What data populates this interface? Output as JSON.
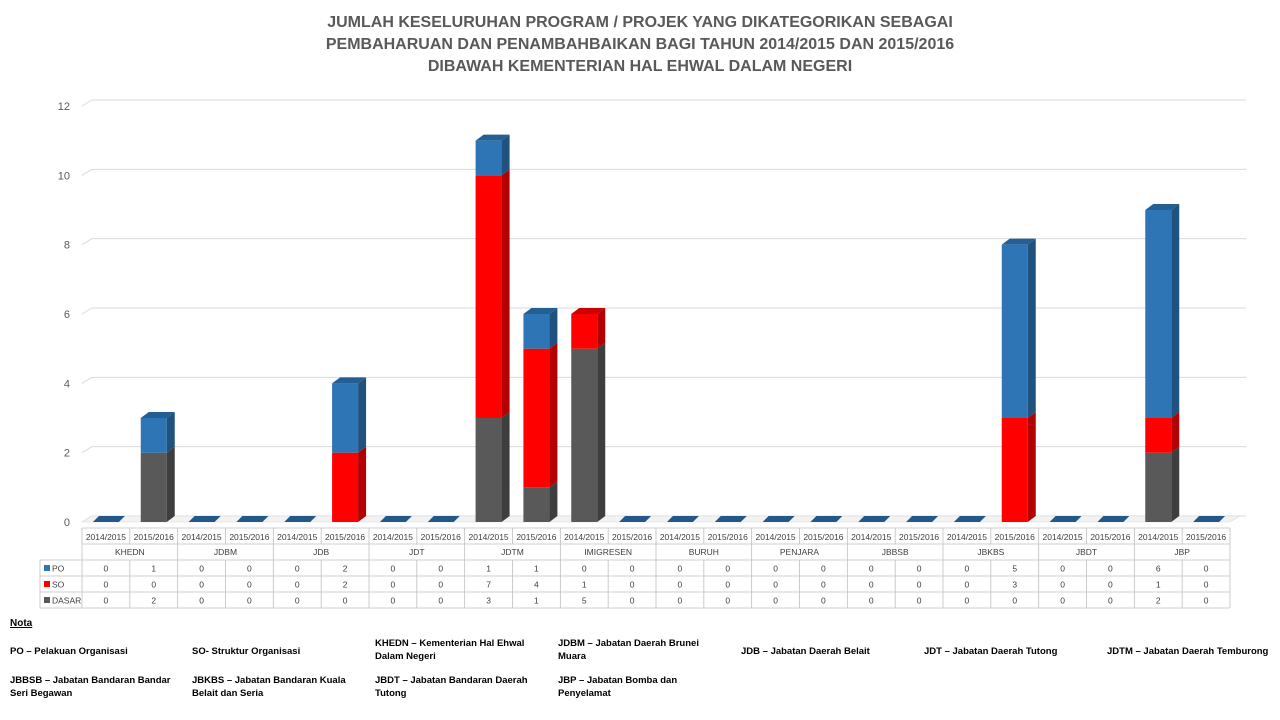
{
  "chart_data": {
    "type": "bar",
    "stacked": true,
    "title_lines": [
      "JUMLAH KESELURUHAN PROGRAM / PROJEK YANG DIKATEGORIKAN SEBAGAI",
      "PEMBAHARUAN DAN PENAMBAHBAIKAN BAGI TAHUN 2014/2015 DAN 2015/2016",
      "DIBAWAH KEMENTERIAN HAL EHWAL DALAM NEGERI"
    ],
    "groups": [
      "KHEDN",
      "JDBM",
      "JDB",
      "JDT",
      "JDTM",
      "IMIGRESEN",
      "BURUH",
      "PENJARA",
      "JBBSB",
      "JBKBS",
      "JBDT",
      "JBP"
    ],
    "years": [
      "2014/2015",
      "2015/2016"
    ],
    "ylim": [
      0,
      12
    ],
    "yticks": [
      0,
      2,
      4,
      6,
      8,
      10,
      12
    ],
    "grid": true,
    "series": [
      {
        "name": "PO",
        "color": "#2E75B6",
        "values": [
          0,
          1,
          0,
          0,
          0,
          2,
          0,
          0,
          1,
          1,
          0,
          0,
          0,
          0,
          0,
          0,
          0,
          0,
          0,
          5,
          0,
          0,
          6,
          0
        ]
      },
      {
        "name": "SO",
        "color": "#FF0000",
        "values": [
          0,
          0,
          0,
          0,
          0,
          2,
          0,
          0,
          7,
          4,
          1,
          0,
          0,
          0,
          0,
          0,
          0,
          0,
          0,
          3,
          0,
          0,
          1,
          0
        ]
      },
      {
        "name": "DASAR",
        "color": "#595959",
        "values": [
          0,
          2,
          0,
          0,
          0,
          0,
          0,
          0,
          3,
          1,
          5,
          0,
          0,
          0,
          0,
          0,
          0,
          0,
          0,
          0,
          0,
          0,
          2,
          0
        ]
      }
    ]
  },
  "notes": {
    "heading": "Nota",
    "items": [
      "PO – Pelakuan Organisasi",
      "SO- Struktur Organisasi",
      "KHEDN – Kementerian Hal Ehwal Dalam Negeri",
      "JDBM – Jabatan Daerah Brunei Muara",
      "JDB – Jabatan Daerah Belait",
      "JDT – Jabatan Daerah Tutong",
      "JDTM – Jabatan Daerah Temburong",
      "JBBSB – Jabatan Bandaran Bandar Seri Begawan",
      "JBKBS – Jabatan Bandaran Kuala Belait dan Seria",
      "JBDT – Jabatan Bandaran Daerah Tutong",
      "JBP – Jabatan Bomba dan Penyelamat"
    ]
  }
}
